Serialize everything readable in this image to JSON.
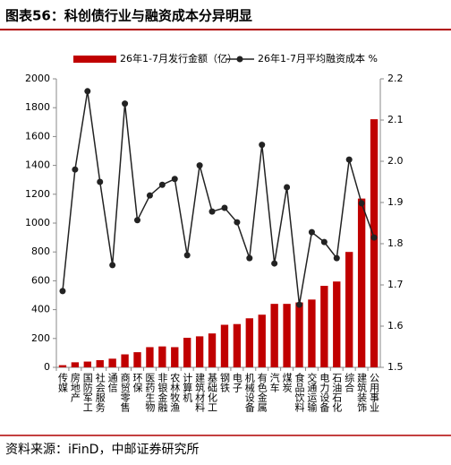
{
  "chart_data": {
    "type": "bar_line",
    "title": "图表56：科创债行业与融资成本分异明显",
    "source": "资料来源：iFinD，中邮证券研究所",
    "categories": [
      "传媒",
      "房地产",
      "国防军工",
      "社会服务",
      "通信",
      "商贸零售",
      "环保",
      "医药生物",
      "非银金融",
      "农林牧渔",
      "计算机",
      "建筑材料",
      "基础化工",
      "钢铁",
      "电子",
      "机械设备",
      "有色金属",
      "汽车",
      "煤炭",
      "食品饮料",
      "交通运输",
      "电力设备",
      "石油石化",
      "综合",
      "建筑装饰",
      "公用事业"
    ],
    "series": [
      {
        "name": "26年1-7月发行金额（亿）",
        "type": "bar",
        "color": "#c00000",
        "values": [
          15,
          35,
          40,
          50,
          60,
          90,
          105,
          140,
          145,
          140,
          205,
          215,
          235,
          295,
          300,
          340,
          365,
          440,
          440,
          450,
          470,
          565,
          595,
          800,
          1170,
          1720
        ]
      },
      {
        "name": "26年1-7月平均融资成本 %",
        "type": "line",
        "axis": "y2",
        "color": "#222222",
        "values": [
          1.685,
          1.98,
          2.17,
          1.95,
          1.748,
          2.14,
          1.857,
          1.917,
          1.943,
          1.957,
          1.772,
          1.99,
          1.878,
          1.887,
          1.852,
          1.765,
          2.04,
          1.752,
          1.937,
          1.652,
          1.828,
          1.804,
          1.765,
          2.004,
          1.898,
          1.815
        ]
      }
    ],
    "ylim": [
      0,
      2000
    ],
    "yticks": [
      0,
      200,
      400,
      600,
      800,
      1000,
      1200,
      1400,
      1600,
      1800,
      2000
    ],
    "y2lim": [
      1.5,
      2.2
    ],
    "y2ticks": [
      1.5,
      1.6,
      1.7,
      1.8,
      1.9,
      {
        "value": 2,
        "label": "2.0"
      },
      2.1,
      2.2
    ]
  }
}
